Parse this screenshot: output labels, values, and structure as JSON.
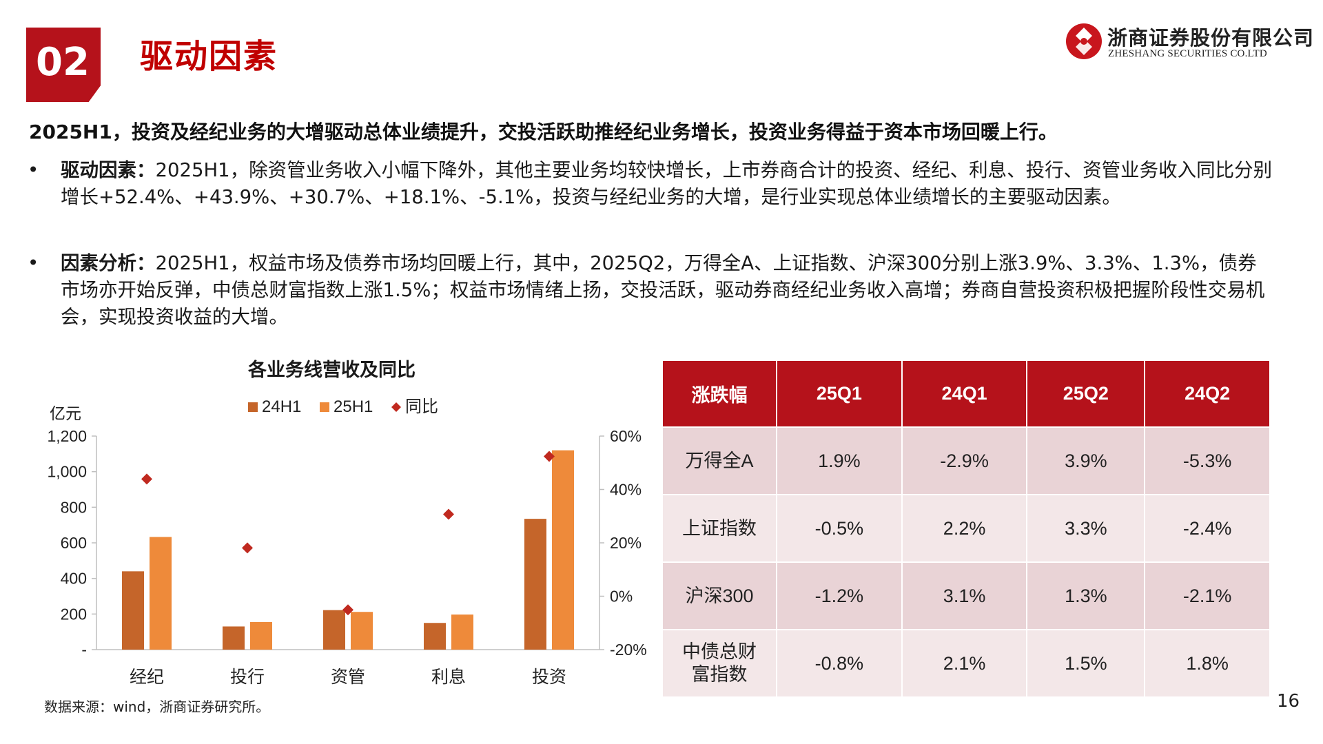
{
  "header": {
    "section_number": "02",
    "section_title": "驱动因素",
    "logo": {
      "cn": "浙商证券股份有限公司",
      "en": "ZHESHANG SECURITIES CO.LTD"
    }
  },
  "lead": "2025H1，投资及经纪业务的大增驱动总体业绩提升，交投活跃助推经纪业务增长，投资业务得益于资本市场回暖上行。",
  "bullets": [
    {
      "marker": "•",
      "label": "驱动因素：",
      "text": "2025H1，除资管业务收入小幅下降外，其他主要业务均较快增长，上市券商合计的投资、经纪、利息、投行、资管业务收入同比分别增长+52.4%、+43.9%、+30.7%、+18.1%、-5.1%，投资与经纪业务的大增，是行业实现总体业绩增长的主要驱动因素。"
    },
    {
      "marker": "•",
      "label": "因素分析：",
      "text": "2025H1，权益市场及债券市场均回暖上行，其中，2025Q2，万得全A、上证指数、沪深300分别上涨3.9%、3.3%、1.3%，债券市场亦开始反弹，中债总财富指数上涨1.5%；权益市场情绪上扬，交投活跃，驱动券商经纪业务收入高增；券商自营投资积极把握阶段性交易机会，实现投资收益的大增。"
    }
  ],
  "chart_data": {
    "type": "bar",
    "title": "各业务线营收及同比",
    "ylabel": "亿元",
    "categories": [
      "经纪",
      "投行",
      "资管",
      "利息",
      "投资"
    ],
    "series": [
      {
        "name": "24H1",
        "type": "bar",
        "axis": "left",
        "color": "#c5652a",
        "values": [
          440,
          130,
          222,
          150,
          735
        ]
      },
      {
        "name": "25H1",
        "type": "bar",
        "axis": "left",
        "color": "#ee8a3a",
        "values": [
          633,
          155,
          212,
          197,
          1120
        ]
      },
      {
        "name": "同比",
        "type": "scatter",
        "axis": "right",
        "color": "#c0291f",
        "values": [
          43.9,
          18.1,
          -5.1,
          30.7,
          52.4
        ]
      }
    ],
    "ylim": [
      0,
      1200
    ],
    "yticks": [
      0,
      200,
      400,
      600,
      800,
      1000,
      1200
    ],
    "yticklabels": [
      "-",
      "200",
      "400",
      "600",
      "800",
      "1,000",
      "1,200"
    ],
    "y2lim": [
      -20,
      60
    ],
    "y2ticks": [
      -20,
      0,
      20,
      40,
      60
    ],
    "y2ticklabels": [
      "-20%",
      "0%",
      "20%",
      "40%",
      "60%"
    ],
    "legend_position": "top-center",
    "grid": false
  },
  "table": {
    "headers": [
      "涨跌幅",
      "25Q1",
      "24Q1",
      "25Q2",
      "24Q2"
    ],
    "rows": [
      [
        "万得全A",
        "1.9%",
        "-2.9%",
        "3.9%",
        "-5.3%"
      ],
      [
        "上证指数",
        "-0.5%",
        "2.2%",
        "3.3%",
        "-2.4%"
      ],
      [
        "沪深300",
        "-1.2%",
        "3.1%",
        "1.3%",
        "-2.1%"
      ],
      [
        "中债总财富指数",
        "-0.8%",
        "2.1%",
        "1.5%",
        "1.8%"
      ]
    ]
  },
  "source": "数据来源：wind，浙商证券研究所。",
  "page_number": "16",
  "colors": {
    "brand_red": "#b5121b",
    "title_red": "#c00000",
    "bar_24h1": "#c5652a",
    "bar_25h1": "#ee8a3a",
    "yoy_marker": "#c0291f"
  }
}
